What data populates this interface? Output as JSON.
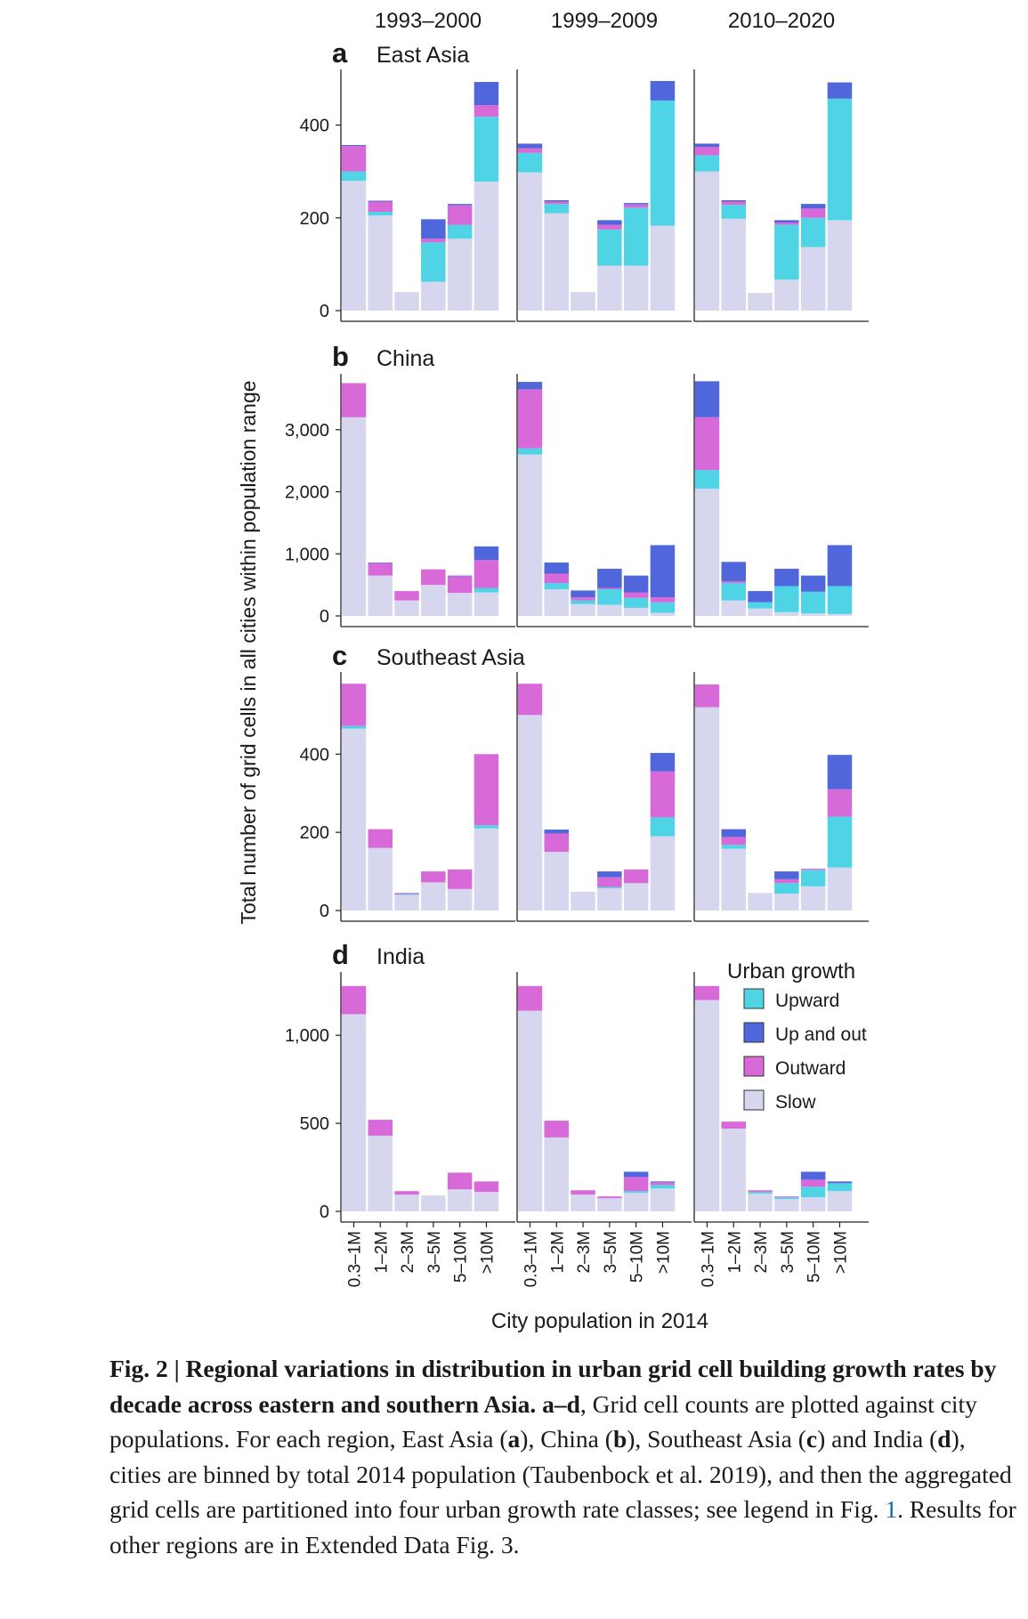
{
  "legend": {
    "title": "Urban growth",
    "items": [
      {
        "key": "upward",
        "label": "Upward",
        "color": "#4fd4e6"
      },
      {
        "key": "upout",
        "label": "Up and out",
        "color": "#5067dc"
      },
      {
        "key": "outward",
        "label": "Outward",
        "color": "#d76ad8"
      },
      {
        "key": "slow",
        "label": "Slow",
        "color": "#d6d6ee"
      }
    ]
  },
  "y_axis_label": "Total number of grid cells in all cities within population range",
  "x_axis_label": "City population in 2014",
  "columns": [
    "1993–2000",
    "1999–2009",
    "2010–2020"
  ],
  "categories": [
    "0.3–1M",
    "1–2M",
    "2–3M",
    "3–5M",
    "5–10M",
    ">10M"
  ],
  "caption": {
    "fig": "Fig. 2",
    "sep": " | ",
    "title": "Regional variations in distribution in urban grid cell building growth rates by decade across eastern and southern Asia.",
    "text1": " ",
    "a": "a",
    "dash": "–",
    "d": "d",
    "text2": ", Grid cell counts are plotted against city populations. For each region, East Asia (",
    "ra": "a",
    "text3": "), China (",
    "rb": "b",
    "text4": "), Southeast Asia (",
    "rc": "c",
    "text5": ") and India (",
    "rd": "d",
    "text6": "), cities are binned by total 2014 population (Taubenbock et al. 2019), and then the aggregated grid cells are partitioned into four urban growth rate classes; see legend in Fig. ",
    "ref": "1",
    "text7": ". Results for other regions are in Extended Data Fig. 3."
  },
  "chart_data": {
    "type": "bar",
    "stacked": true,
    "stack_order": [
      "slow",
      "upward",
      "outward",
      "upout"
    ],
    "panels": [
      {
        "letter": "a",
        "region": "East Asia",
        "ylim": [
          0,
          520
        ],
        "yticks": [
          0,
          200,
          400
        ],
        "ytick_labels": [
          "0",
          "200",
          "400"
        ],
        "periods": [
          {
            "name": "1993–2000",
            "slow": [
              280,
              205,
              40,
              62,
              155,
              278
            ],
            "upward": [
              20,
              8,
              0,
              85,
              30,
              140
            ],
            "outward": [
              55,
              22,
              0,
              8,
              42,
              25
            ],
            "upout": [
              2,
              2,
              0,
              42,
              3,
              50
            ]
          },
          {
            "name": "1999–2009",
            "slow": [
              298,
              210,
              40,
              97,
              97,
              183
            ],
            "upward": [
              42,
              20,
              0,
              78,
              125,
              270
            ],
            "outward": [
              10,
              5,
              0,
              10,
              7,
              0
            ],
            "upout": [
              10,
              3,
              0,
              10,
              3,
              42
            ]
          },
          {
            "name": "2010–2020",
            "slow": [
              300,
              198,
              38,
              67,
              137,
              195
            ],
            "upward": [
              35,
              30,
              0,
              118,
              63,
              262
            ],
            "outward": [
              18,
              7,
              0,
              5,
              20,
              0
            ],
            "upout": [
              7,
              3,
              0,
              5,
              10,
              35
            ]
          }
        ]
      },
      {
        "letter": "b",
        "region": "China",
        "ylim": [
          0,
          3900
        ],
        "yticks": [
          0,
          1000,
          2000,
          3000
        ],
        "ytick_labels": [
          "0",
          "1,000",
          "2,000",
          "3,000"
        ],
        "periods": [
          {
            "name": "1993–2000",
            "slow": [
              3200,
              650,
              250,
              500,
              370,
              380
            ],
            "upward": [
              0,
              0,
              0,
              0,
              0,
              70
            ],
            "outward": [
              550,
              200,
              150,
              250,
              270,
              450
            ],
            "upout": [
              0,
              10,
              0,
              0,
              10,
              220
            ]
          },
          {
            "name": "1999–2009",
            "slow": [
              2600,
              430,
              190,
              180,
              130,
              50
            ],
            "upward": [
              100,
              100,
              60,
              250,
              160,
              170
            ],
            "outward": [
              950,
              150,
              50,
              20,
              90,
              80
            ],
            "upout": [
              120,
              180,
              110,
              310,
              270,
              840
            ]
          },
          {
            "name": "2010–2020",
            "slow": [
              2050,
              250,
              120,
              60,
              40,
              30
            ],
            "upward": [
              300,
              280,
              100,
              420,
              350,
              450
            ],
            "outward": [
              850,
              30,
              0,
              0,
              0,
              0
            ],
            "upout": [
              580,
              310,
              180,
              280,
              260,
              660
            ]
          }
        ]
      },
      {
        "letter": "c",
        "region": "Southeast Asia",
        "ylim": [
          0,
          610
        ],
        "yticks": [
          0,
          200,
          400
        ],
        "ytick_labels": [
          "0",
          "200",
          "400"
        ],
        "periods": [
          {
            "name": "1993–2000",
            "slow": [
              465,
              160,
              40,
              72,
              55,
              210
            ],
            "upward": [
              7,
              0,
              2,
              0,
              0,
              8
            ],
            "outward": [
              108,
              48,
              3,
              28,
              50,
              182
            ],
            "upout": [
              0,
              0,
              0,
              0,
              0,
              0
            ]
          },
          {
            "name": "1999–2009",
            "slow": [
              500,
              150,
              48,
              57,
              70,
              190
            ],
            "upward": [
              0,
              0,
              0,
              3,
              0,
              48
            ],
            "outward": [
              80,
              47,
              0,
              25,
              35,
              118
            ],
            "upout": [
              0,
              10,
              0,
              15,
              0,
              47
            ]
          },
          {
            "name": "2010–2020",
            "slow": [
              520,
              158,
              45,
              43,
              62,
              110
            ],
            "upward": [
              0,
              10,
              0,
              27,
              42,
              130
            ],
            "outward": [
              58,
              20,
              0,
              10,
              3,
              70
            ],
            "upout": [
              0,
              20,
              0,
              20,
              0,
              88
            ]
          }
        ]
      },
      {
        "letter": "d",
        "region": "India",
        "ylim": [
          0,
          1360
        ],
        "yticks": [
          0,
          500,
          1000
        ],
        "ytick_labels": [
          "0",
          "500",
          "1,000"
        ],
        "periods": [
          {
            "name": "1993–2000",
            "slow": [
              1120,
              430,
              95,
              90,
              125,
              110
            ],
            "upward": [
              0,
              0,
              0,
              0,
              0,
              0
            ],
            "outward": [
              160,
              90,
              20,
              0,
              95,
              60
            ],
            "upout": [
              0,
              0,
              0,
              0,
              0,
              0
            ]
          },
          {
            "name": "1999–2009",
            "slow": [
              1140,
              420,
              95,
              75,
              105,
              130
            ],
            "upward": [
              0,
              0,
              0,
              0,
              10,
              20
            ],
            "outward": [
              140,
              95,
              25,
              10,
              80,
              15
            ],
            "upout": [
              0,
              0,
              0,
              0,
              30,
              5
            ]
          },
          {
            "name": "2010–2020",
            "slow": [
              1200,
              470,
              100,
              70,
              80,
              115
            ],
            "upward": [
              0,
              0,
              10,
              10,
              60,
              45
            ],
            "outward": [
              80,
              40,
              10,
              5,
              40,
              0
            ],
            "upout": [
              0,
              0,
              0,
              0,
              45,
              10
            ]
          }
        ]
      }
    ]
  }
}
